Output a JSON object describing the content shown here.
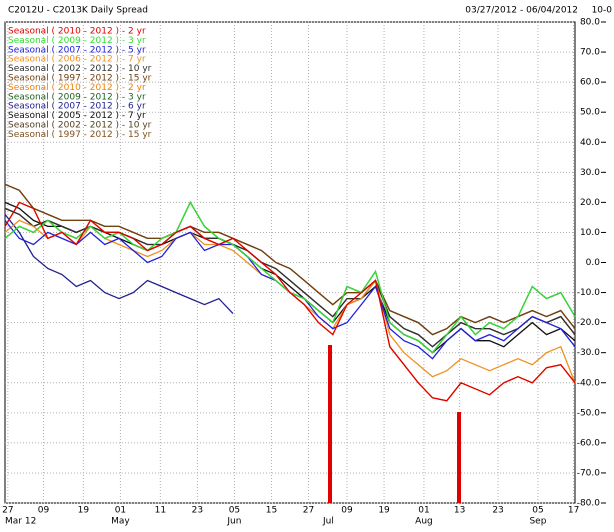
{
  "chart_data": {
    "type": "line",
    "title": "C2012U - C2013K Daily Spread",
    "date_range": "03/27/2012 - 06/04/2012",
    "corner_label": "10-0",
    "xlim": [
      0,
      40
    ],
    "xticks": [
      {
        "value": 0.2,
        "label": "27"
      },
      {
        "value": 2.7,
        "label": "09"
      },
      {
        "value": 5.5,
        "label": "19"
      },
      {
        "value": 8.1,
        "label": "01"
      },
      {
        "value": 10.9,
        "label": "11"
      },
      {
        "value": 13.5,
        "label": "23"
      },
      {
        "value": 16.1,
        "label": "05"
      },
      {
        "value": 18.7,
        "label": "15"
      },
      {
        "value": 21.3,
        "label": "27"
      },
      {
        "value": 24.0,
        "label": "09"
      },
      {
        "value": 26.6,
        "label": "19"
      },
      {
        "value": 29.4,
        "label": "01"
      },
      {
        "value": 31.9,
        "label": "13"
      },
      {
        "value": 34.6,
        "label": "23"
      },
      {
        "value": 37.4,
        "label": "05"
      },
      {
        "value": 39.9,
        "label": "17"
      }
    ],
    "months": [
      {
        "value": 0,
        "label": "Mar 12"
      },
      {
        "value": 8.1,
        "label": "May"
      },
      {
        "value": 16.1,
        "label": "Jun"
      },
      {
        "value": 22.7,
        "label": "Jul"
      },
      {
        "value": 29.4,
        "label": "Aug"
      },
      {
        "value": 37.4,
        "label": "Sep"
      }
    ],
    "ylim": [
      -80,
      80
    ],
    "yticks": [
      {
        "value": 80,
        "label": "80.0"
      },
      {
        "value": 70,
        "label": "70.0"
      },
      {
        "value": 60,
        "label": "60.0"
      },
      {
        "value": 50,
        "label": "50.0"
      },
      {
        "value": 40,
        "label": "40.0"
      },
      {
        "value": 30,
        "label": "30.0"
      },
      {
        "value": 20,
        "label": "20.0"
      },
      {
        "value": 10,
        "label": "10.0"
      },
      {
        "value": 0,
        "label": "0.0"
      },
      {
        "value": -10,
        "label": "-10.0"
      },
      {
        "value": -20,
        "label": "-20.0"
      },
      {
        "value": -30,
        "label": "-30.0"
      },
      {
        "value": -40,
        "label": "-40.0"
      },
      {
        "value": -50,
        "label": "-50.0"
      },
      {
        "value": -60,
        "label": "-60.0"
      },
      {
        "value": -70,
        "label": "-70.0"
      },
      {
        "value": -80,
        "label": "-80.0"
      }
    ],
    "grid": true,
    "series": [
      {
        "name": "Seasonal ( 2010 - 2012 ) - 2 yr",
        "color": "#e00000",
        "values": [
          12,
          20,
          18,
          8,
          10,
          6,
          14,
          10,
          10,
          8,
          4,
          6,
          10,
          12,
          8,
          6,
          8,
          4,
          0,
          -4,
          -10,
          -14,
          -20,
          -24,
          -14,
          -10,
          -6,
          -28,
          -34,
          -40,
          -45,
          -46,
          -40,
          -42,
          -44,
          -40,
          -38,
          -40,
          -35,
          -34,
          -40
        ]
      },
      {
        "name": "Seasonal ( 2009 - 2012 ) - 3 yr",
        "color": "#33dd33",
        "values": [
          8,
          12,
          10,
          14,
          10,
          8,
          12,
          8,
          10,
          6,
          4,
          8,
          10,
          20,
          12,
          8,
          6,
          2,
          -2,
          -6,
          -10,
          -12,
          -16,
          -20,
          -8,
          -10,
          -3,
          -20,
          -24,
          -26,
          -30,
          -24,
          -18,
          -24,
          -20,
          -22,
          -18,
          -8,
          -12,
          -10,
          -18
        ]
      },
      {
        "name": "Seasonal ( 2007 - 2012 ) - 5 yr",
        "color": "#2020e0",
        "values": [
          14,
          8,
          6,
          10,
          8,
          6,
          10,
          6,
          8,
          4,
          0,
          2,
          8,
          10,
          4,
          6,
          6,
          2,
          -4,
          -6,
          -10,
          -12,
          -18,
          -22,
          -20,
          -14,
          -8,
          -22,
          -26,
          -28,
          -32,
          -26,
          -22,
          -26,
          -24,
          -26,
          -22,
          -18,
          -20,
          -22,
          -28
        ]
      },
      {
        "name": "Seasonal ( 2006 - 2012 ) - 7 yr",
        "color": "#f09020",
        "values": [
          10,
          14,
          12,
          8,
          10,
          6,
          12,
          8,
          6,
          4,
          2,
          4,
          8,
          10,
          6,
          6,
          4,
          0,
          -4,
          -6,
          -10,
          -14,
          -18,
          -22,
          -14,
          -12,
          -6,
          -24,
          -30,
          -34,
          -38,
          -36,
          -32,
          -34,
          -36,
          -34,
          -32,
          -34,
          -30,
          -28,
          -40
        ]
      },
      {
        "name": "Seasonal ( 2002 - 2012 ) - 10 yr",
        "color": "#303030",
        "values": [
          18,
          16,
          12,
          14,
          12,
          10,
          12,
          10,
          10,
          8,
          6,
          6,
          10,
          12,
          8,
          8,
          6,
          4,
          0,
          -2,
          -6,
          -10,
          -14,
          -18,
          -12,
          -12,
          -6,
          -18,
          -22,
          -24,
          -28,
          -24,
          -20,
          -22,
          -22,
          -24,
          -22,
          -18,
          -20,
          -18,
          -24
        ]
      },
      {
        "name": "Seasonal ( 1997 - 2012 ) - 15 yr",
        "color": "#704010",
        "values": [
          26,
          24,
          18,
          16,
          14,
          14,
          14,
          12,
          12,
          10,
          8,
          8,
          10,
          12,
          10,
          10,
          8,
          6,
          4,
          0,
          -2,
          -6,
          -10,
          -14,
          -10,
          -10,
          -6,
          -16,
          -18,
          -20,
          -24,
          -22,
          -18,
          -20,
          -18,
          -20,
          -18,
          -16,
          -18,
          -16,
          -22
        ]
      },
      {
        "name": "Seasonal ( 2010 - 2012 ) - 2 yr",
        "color": "#f08000",
        "values": [
          12,
          20,
          18,
          8,
          10,
          6,
          14,
          10,
          10,
          8,
          4,
          6,
          10,
          12,
          8,
          6,
          8,
          4,
          0,
          -4,
          -10,
          -14,
          -20,
          -24,
          -14,
          -10,
          -6,
          -28,
          -34,
          -40,
          -45,
          -46,
          -40,
          -42,
          -44,
          -40,
          -38,
          -40,
          -35,
          -34,
          -40
        ]
      },
      {
        "name": "Seasonal ( 2009 - 2012 ) - 3 yr",
        "color": "#206020",
        "values": [
          8,
          12,
          10,
          14,
          10,
          8,
          12,
          8,
          10,
          6,
          4,
          8,
          10,
          20,
          12,
          8,
          6,
          2,
          -2,
          -6,
          -10,
          -12,
          -16,
          -20,
          -8,
          -10,
          -3,
          -20,
          -24,
          -26,
          -30,
          -24,
          -18,
          -24,
          -20,
          -22,
          -18,
          -8,
          -12,
          -10,
          -18
        ]
      },
      {
        "name": "Seasonal ( 2007 - 2012 ) - 6 yr",
        "color": "#202090",
        "values": [
          16,
          10,
          2,
          -2,
          -4,
          -8,
          -6,
          -10,
          -12,
          -10,
          -6,
          -8,
          -10,
          -12,
          -14,
          -12,
          -17,
          null,
          null,
          null,
          null,
          null,
          null,
          null,
          null,
          null,
          null,
          null,
          null,
          null,
          null,
          null,
          null,
          null,
          null,
          null,
          null,
          null,
          null,
          null,
          null
        ]
      },
      {
        "name": "Seasonal ( 2005 - 2012 ) - 7 yr",
        "color": "#101010",
        "values": [
          20,
          18,
          14,
          12,
          12,
          10,
          12,
          10,
          8,
          6,
          4,
          6,
          8,
          10,
          8,
          8,
          6,
          2,
          -2,
          -4,
          -8,
          -12,
          -16,
          -20,
          -14,
          -12,
          -8,
          -20,
          -24,
          -26,
          -30,
          -26,
          -22,
          -26,
          -26,
          -28,
          -24,
          -20,
          -24,
          -22,
          -26
        ]
      },
      {
        "name": "Seasonal ( 2002 - 2012 ) - 10 yr",
        "color": "#504020",
        "values": [
          18,
          16,
          12,
          14,
          12,
          10,
          12,
          10,
          10,
          8,
          6,
          6,
          10,
          12,
          8,
          8,
          6,
          4,
          0,
          -2,
          -6,
          -10,
          -14,
          -18,
          -12,
          -12,
          -6,
          -18,
          -22,
          -24,
          -28,
          -24,
          -20,
          -22,
          -22,
          -24,
          -22,
          -18,
          -20,
          -18,
          -24
        ]
      },
      {
        "name": "Seasonal ( 1997 - 2012 ) - 15 yr",
        "color": "#805020",
        "values": [
          26,
          24,
          18,
          16,
          14,
          14,
          14,
          12,
          12,
          10,
          8,
          8,
          10,
          12,
          10,
          10,
          8,
          6,
          4,
          0,
          -2,
          -6,
          -10,
          -14,
          -10,
          -10,
          -6,
          -16,
          -18,
          -20,
          -24,
          -22,
          -18,
          -20,
          -18,
          -20,
          -18,
          -16,
          -18,
          -16,
          -22
        ]
      }
    ]
  }
}
